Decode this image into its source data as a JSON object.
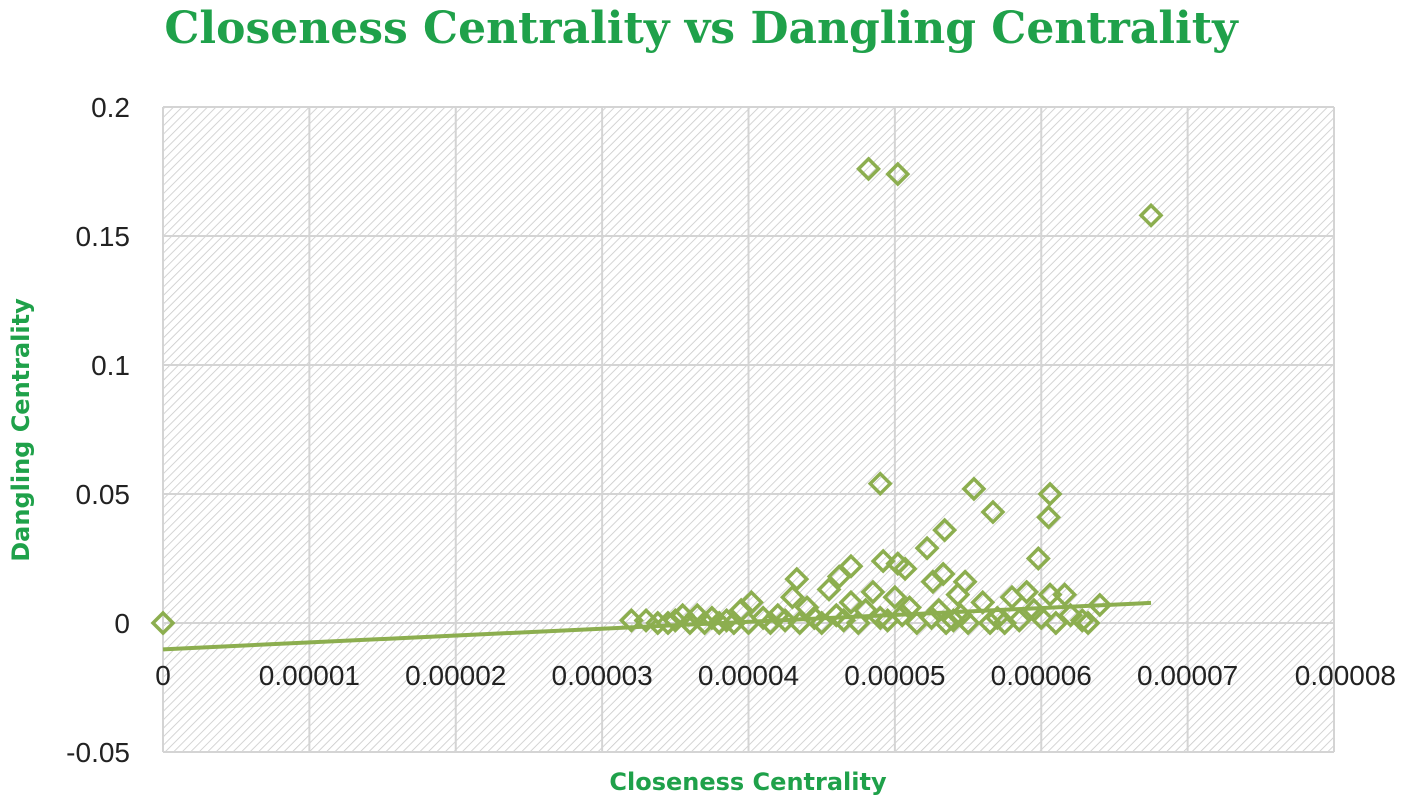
{
  "chart_data": {
    "type": "scatter",
    "title": "Closeness Centrality vs Dangling Centrality",
    "xlabel": "Closeness Centrality",
    "ylabel": "Dangling Centrality",
    "xlim": [
      0,
      8e-05
    ],
    "ylim": [
      -0.05,
      0.2
    ],
    "x_ticks": [
      "0",
      "0.00001",
      "0.00002",
      "0.00003",
      "0.00004",
      "0.00005",
      "0.00006",
      "0.00007",
      "0.00008"
    ],
    "y_ticks": [
      "0.2",
      "0.15",
      "0.1",
      "0.05",
      "0",
      "-0.05"
    ],
    "grid": true,
    "legend": "none",
    "colors": {
      "title": "#1fa14a",
      "axis_title": "#1fa14a",
      "marker": "#8cae4f",
      "trendline": "#8cae4f",
      "grid": "#d4d4d4",
      "hatch": "#c9c9c9"
    },
    "marker": "diamond-open",
    "trendline": {
      "type": "linear",
      "x": [
        0,
        6.75e-05
      ],
      "y": [
        -0.0102,
        0.0078
      ]
    },
    "points": [
      {
        "x": 0,
        "y": 0
      },
      {
        "x": 4.82e-05,
        "y": 0.176
      },
      {
        "x": 5.02e-05,
        "y": 0.174
      },
      {
        "x": 6.75e-05,
        "y": 0.158
      },
      {
        "x": 4.9e-05,
        "y": 0.054
      },
      {
        "x": 5.54e-05,
        "y": 0.052
      },
      {
        "x": 6.06e-05,
        "y": 0.05
      },
      {
        "x": 5.67e-05,
        "y": 0.043
      },
      {
        "x": 6.05e-05,
        "y": 0.041
      },
      {
        "x": 5.34e-05,
        "y": 0.036
      },
      {
        "x": 5.22e-05,
        "y": 0.029
      },
      {
        "x": 5.98e-05,
        "y": 0.025
      },
      {
        "x": 4.92e-05,
        "y": 0.024
      },
      {
        "x": 5.02e-05,
        "y": 0.023
      },
      {
        "x": 4.7e-05,
        "y": 0.022
      },
      {
        "x": 5.07e-05,
        "y": 0.021
      },
      {
        "x": 5.33e-05,
        "y": 0.019
      },
      {
        "x": 4.62e-05,
        "y": 0.018
      },
      {
        "x": 4.33e-05,
        "y": 0.017
      },
      {
        "x": 5.48e-05,
        "y": 0.016
      },
      {
        "x": 5.26e-05,
        "y": 0.016
      },
      {
        "x": 4.55e-05,
        "y": 0.013
      },
      {
        "x": 4.85e-05,
        "y": 0.012
      },
      {
        "x": 5.9e-05,
        "y": 0.012
      },
      {
        "x": 5.43e-05,
        "y": 0.011
      },
      {
        "x": 6.06e-05,
        "y": 0.011
      },
      {
        "x": 6.16e-05,
        "y": 0.011
      },
      {
        "x": 4.3e-05,
        "y": 0.01
      },
      {
        "x": 5e-05,
        "y": 0.01
      },
      {
        "x": 5.8e-05,
        "y": 0.01
      },
      {
        "x": 4.02e-05,
        "y": 0.008
      },
      {
        "x": 4.7e-05,
        "y": 0.008
      },
      {
        "x": 5.6e-05,
        "y": 0.008
      },
      {
        "x": 6.4e-05,
        "y": 0.007
      },
      {
        "x": 4.4e-05,
        "y": 0.006
      },
      {
        "x": 5.1e-05,
        "y": 0.006
      },
      {
        "x": 3.95e-05,
        "y": 0.005
      },
      {
        "x": 4.8e-05,
        "y": 0.005
      },
      {
        "x": 5.3e-05,
        "y": 0.005
      },
      {
        "x": 5.95e-05,
        "y": 0.005
      },
      {
        "x": 3.55e-05,
        "y": 0.003
      },
      {
        "x": 3.65e-05,
        "y": 0.003
      },
      {
        "x": 4.2e-05,
        "y": 0.003
      },
      {
        "x": 4.6e-05,
        "y": 0.003
      },
      {
        "x": 5.05e-05,
        "y": 0.003
      },
      {
        "x": 5.45e-05,
        "y": 0.003
      },
      {
        "x": 6.2e-05,
        "y": 0.003
      },
      {
        "x": 3.75e-05,
        "y": 0.002
      },
      {
        "x": 4.1e-05,
        "y": 0.002
      },
      {
        "x": 4.45e-05,
        "y": 0.002
      },
      {
        "x": 4.9e-05,
        "y": 0.002
      },
      {
        "x": 5.25e-05,
        "y": 0.002
      },
      {
        "x": 5.7e-05,
        "y": 0.002
      },
      {
        "x": 6e-05,
        "y": 0.002
      },
      {
        "x": 3.2e-05,
        "y": 0.001
      },
      {
        "x": 3.3e-05,
        "y": 0.001
      },
      {
        "x": 3.5e-05,
        "y": 0.001
      },
      {
        "x": 3.85e-05,
        "y": 0.001
      },
      {
        "x": 4.25e-05,
        "y": 0.001
      },
      {
        "x": 4.65e-05,
        "y": 0.001
      },
      {
        "x": 4.95e-05,
        "y": 0.001
      },
      {
        "x": 5.4e-05,
        "y": 0.001
      },
      {
        "x": 5.85e-05,
        "y": 0.001
      },
      {
        "x": 6.28e-05,
        "y": 0.001
      },
      {
        "x": 3.38e-05,
        "y": 0.0
      },
      {
        "x": 3.45e-05,
        "y": 0.0
      },
      {
        "x": 3.6e-05,
        "y": 0.0
      },
      {
        "x": 3.7e-05,
        "y": 0.0
      },
      {
        "x": 3.8e-05,
        "y": 0.0
      },
      {
        "x": 3.9e-05,
        "y": 0.0
      },
      {
        "x": 4e-05,
        "y": 0.0
      },
      {
        "x": 4.15e-05,
        "y": 0.0
      },
      {
        "x": 4.35e-05,
        "y": 0.0
      },
      {
        "x": 4.5e-05,
        "y": 0.0
      },
      {
        "x": 4.75e-05,
        "y": 0.0
      },
      {
        "x": 5.15e-05,
        "y": 0.0
      },
      {
        "x": 5.35e-05,
        "y": 0.0
      },
      {
        "x": 5.5e-05,
        "y": 0.0
      },
      {
        "x": 5.65e-05,
        "y": 0.0
      },
      {
        "x": 5.75e-05,
        "y": 0.0
      },
      {
        "x": 6.1e-05,
        "y": 0.0
      },
      {
        "x": 6.32e-05,
        "y": 0.0
      }
    ]
  }
}
